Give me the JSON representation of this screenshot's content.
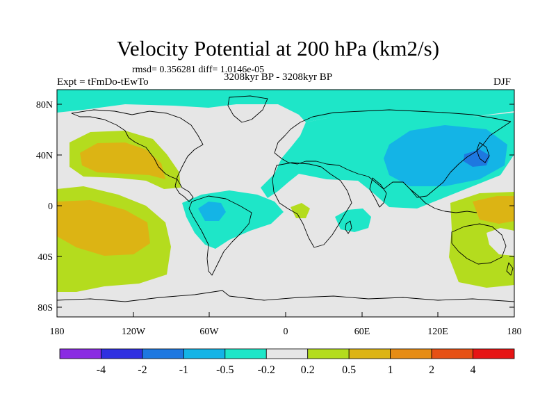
{
  "title": "Velocity Potential at 200 hPa (km2/s)",
  "stats": "rmsd= 0.356281 diff= 1.0146e-05",
  "left_label": "Expt = tFmDo-tEwTo",
  "center_label": "3208kyr BP - 3208kyr BP",
  "right_label": "DJF",
  "lat_ticks": [
    "80N",
    "40N",
    "0",
    "40S",
    "80S"
  ],
  "lon_ticks": [
    "180",
    "120W",
    "60W",
    "0",
    "60E",
    "120E",
    "180"
  ],
  "colorbar": {
    "colors": [
      "#8a2be2",
      "#3030e0",
      "#1e78e0",
      "#14b4e6",
      "#1ee6c8",
      "#e6e6e6",
      "#b4dc1e",
      "#dcb414",
      "#e68c14",
      "#e65014",
      "#e61414"
    ],
    "labels": [
      "-4",
      "-2",
      "-1",
      "-0.5",
      "-0.2",
      "0.2",
      "0.5",
      "1",
      "2",
      "4"
    ]
  },
  "colors": {
    "background": "#e6e6e6",
    "neg_light": "#1ee6c8",
    "neg_mid": "#14b4e6",
    "neg_strong": "#1e78e0",
    "pos_light": "#b4dc1e",
    "pos_mid": "#dcb414"
  }
}
